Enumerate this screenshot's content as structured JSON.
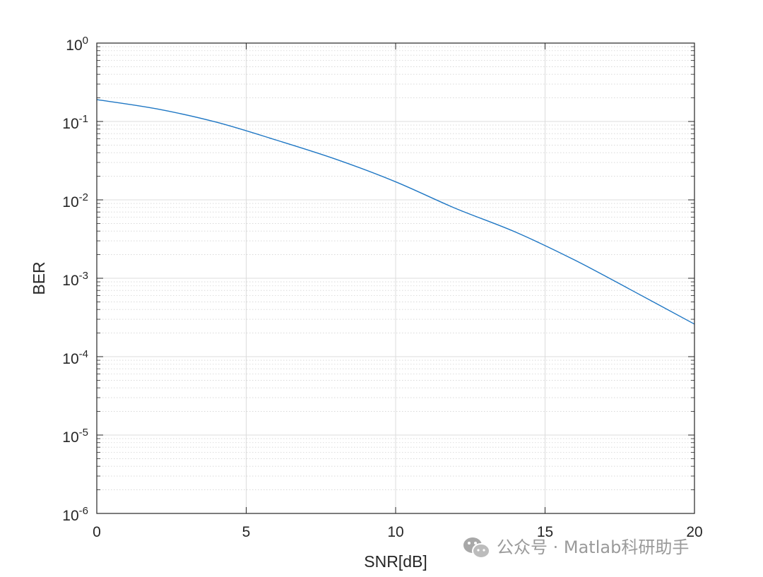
{
  "chart_data": {
    "type": "line",
    "title": "",
    "xlabel": "SNR[dB]",
    "ylabel": "BER",
    "xlim": [
      0,
      20
    ],
    "ylim": [
      1e-06,
      1
    ],
    "yscale": "log",
    "grid": true,
    "minor_grid": true,
    "x_ticks": [
      0,
      5,
      10,
      15,
      20
    ],
    "x_tick_labels": [
      "0",
      "5",
      "10",
      "15",
      "20"
    ],
    "y_ticks": [
      {
        "value": 1e-06,
        "base": "10",
        "exp": "-6"
      },
      {
        "value": 1e-05,
        "base": "10",
        "exp": "-5"
      },
      {
        "value": 0.0001,
        "base": "10",
        "exp": "-4"
      },
      {
        "value": 0.001,
        "base": "10",
        "exp": "-3"
      },
      {
        "value": 0.01,
        "base": "10",
        "exp": "-2"
      },
      {
        "value": 0.1,
        "base": "10",
        "exp": "-1"
      },
      {
        "value": 1,
        "base": "10",
        "exp": "0"
      }
    ],
    "series": [
      {
        "color": "#1f77c4",
        "x": [
          0,
          2,
          4,
          6,
          8,
          10,
          12,
          14,
          16,
          18,
          20
        ],
        "y": [
          0.19,
          0.145,
          0.098,
          0.058,
          0.033,
          0.017,
          0.0078,
          0.0039,
          0.0017,
          0.00067,
          0.00026
        ]
      }
    ]
  },
  "watermark": {
    "icon": "wechat-icon",
    "text": "公众号 · Matlab科研助手"
  }
}
